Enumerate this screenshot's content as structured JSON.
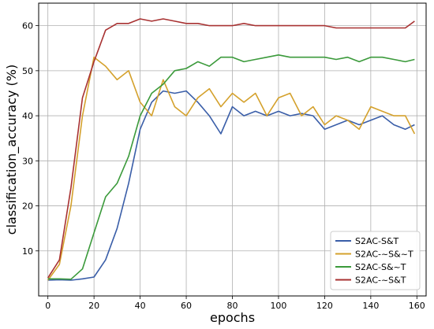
{
  "chart_data": {
    "type": "line",
    "xlabel": "epochs",
    "ylabel": "classification_accuracy (%)",
    "xlim": [
      -4,
      164
    ],
    "ylim": [
      0,
      65
    ],
    "xticks": [
      "0",
      "20",
      "40",
      "60",
      "80",
      "100",
      "120",
      "140",
      "160"
    ],
    "yticks": [
      "10",
      "20",
      "30",
      "40",
      "50",
      "60"
    ],
    "grid": true,
    "legend_position": "bottom-right",
    "x": [
      0,
      5,
      10,
      15,
      20,
      25,
      30,
      35,
      40,
      45,
      50,
      55,
      60,
      65,
      70,
      75,
      80,
      85,
      90,
      95,
      100,
      105,
      110,
      115,
      120,
      125,
      130,
      135,
      140,
      145,
      150,
      155,
      159
    ],
    "series": [
      {
        "name": "S2AC-S&T",
        "color": "#3a5ea8",
        "values": [
          3.5,
          3.6,
          3.5,
          3.8,
          4.2,
          8.0,
          15.0,
          25.0,
          37.0,
          43.0,
          45.5,
          45.0,
          45.5,
          43.0,
          40.0,
          36.0,
          42.0,
          40.0,
          41.0,
          40.0,
          41.0,
          40.0,
          40.5,
          40.0,
          37.0,
          38.0,
          39.0,
          38.0,
          39.0,
          40.0,
          38.0,
          37.0,
          38.0
        ]
      },
      {
        "name": "S2AC-~S&~T",
        "color": "#d4a12c",
        "values": [
          3.5,
          7.0,
          20.0,
          40.0,
          53.0,
          51.0,
          48.0,
          50.0,
          43.0,
          40.0,
          48.0,
          42.0,
          40.0,
          44.0,
          46.0,
          42.0,
          45.0,
          43.0,
          45.0,
          40.0,
          44.0,
          45.0,
          40.0,
          42.0,
          38.0,
          40.0,
          39.0,
          37.0,
          42.0,
          41.0,
          40.0,
          40.0,
          36.0
        ]
      },
      {
        "name": "S2AC-S&~T",
        "color": "#3b9a3b",
        "values": [
          3.8,
          3.8,
          3.7,
          6.0,
          14.0,
          22.0,
          25.0,
          31.0,
          40.0,
          45.0,
          47.0,
          50.0,
          50.5,
          52.0,
          51.0,
          53.0,
          53.0,
          52.0,
          52.5,
          53.0,
          53.5,
          53.0,
          53.0,
          53.0,
          53.0,
          52.5,
          53.0,
          52.0,
          53.0,
          53.0,
          52.5,
          52.0,
          52.5
        ]
      },
      {
        "name": "S2AC-~S&T",
        "color": "#a83232",
        "values": [
          4.0,
          8.0,
          24.0,
          44.0,
          52.0,
          59.0,
          60.5,
          60.5,
          61.5,
          61.0,
          61.5,
          61.0,
          60.5,
          60.5,
          60.0,
          60.0,
          60.0,
          60.5,
          60.0,
          60.0,
          60.0,
          60.0,
          60.0,
          60.0,
          60.0,
          59.5,
          59.5,
          59.5,
          59.5,
          59.5,
          59.5,
          59.5,
          61.0
        ]
      }
    ]
  }
}
